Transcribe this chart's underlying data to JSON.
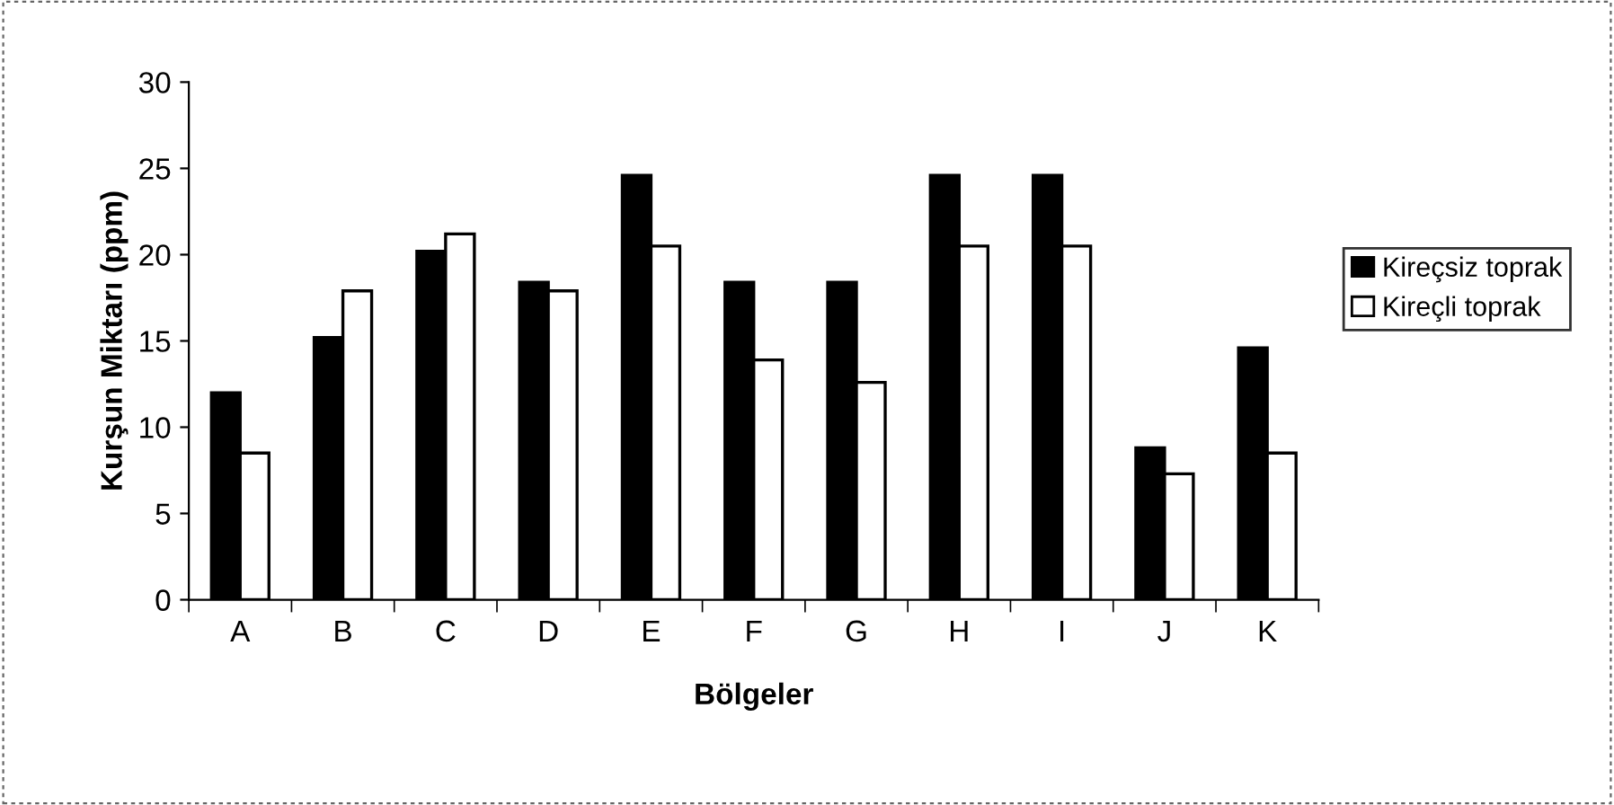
{
  "chart_data": {
    "type": "bar",
    "xlabel": "Bölgeler",
    "ylabel": "Kurşun Miktarı (ppm)",
    "categories": [
      "A",
      "B",
      "C",
      "D",
      "E",
      "F",
      "G",
      "H",
      "I",
      "J",
      "K"
    ],
    "series": [
      {
        "name": "Kireçsiz toprak",
        "color": "#000000",
        "values": [
          12.0,
          15.2,
          20.2,
          18.4,
          24.6,
          18.4,
          18.4,
          24.6,
          24.6,
          8.8,
          14.6
        ]
      },
      {
        "name": "Kireçli toprak",
        "color": "#ffffff",
        "values": [
          8.5,
          17.9,
          21.2,
          17.9,
          20.5,
          13.9,
          12.6,
          20.5,
          20.5,
          7.3,
          8.5
        ]
      }
    ],
    "ylim": [
      0,
      30
    ],
    "yticks": [
      0,
      5,
      10,
      15,
      20,
      25,
      30
    ],
    "grid": false,
    "legend": "right"
  }
}
